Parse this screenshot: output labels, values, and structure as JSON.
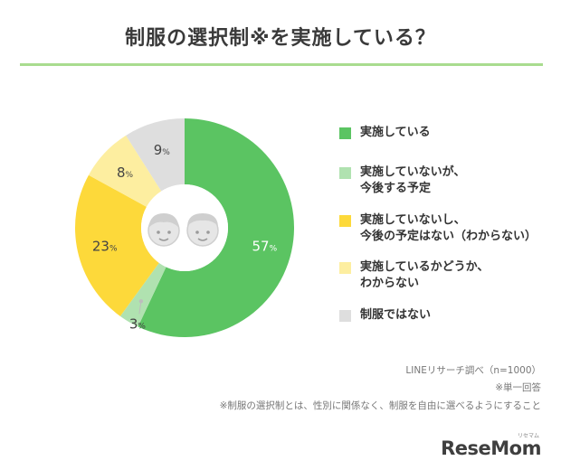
{
  "title": "制服の選択制※を実施している？",
  "chart_data": {
    "type": "pie",
    "categories": [
      "実施している",
      "実施していないが、今後する予定",
      "実施していないし、今後の予定はない（わからない）",
      "実施しているかどうか、わからない",
      "制服ではない"
    ],
    "values": [
      57,
      3,
      23,
      8,
      9
    ],
    "unit": "%",
    "colors": [
      "#5bc462",
      "#b0e2b0",
      "#fdd93a",
      "#fdeea0",
      "#dedede"
    ],
    "legend": {
      "placement": "right",
      "items": [
        {
          "lines": [
            "実施している"
          ],
          "color": "#5bc462"
        },
        {
          "lines": [
            "実施していないが、",
            "今後する予定"
          ],
          "color": "#b0e2b0"
        },
        {
          "lines": [
            "実施していないし、",
            "今後の予定はない（わからない）"
          ],
          "color": "#fdd93a"
        },
        {
          "lines": [
            "実施しているかどうか、",
            "わからない"
          ],
          "color": "#fdeea0"
        },
        {
          "lines": [
            "制服ではない"
          ],
          "color": "#dedede"
        }
      ]
    }
  },
  "notes": {
    "source": "LINEリサーチ調べ（n=1000）",
    "single_answer": "※単一回答",
    "footnote": "※制服の選択制とは、性別に関係なく、制服を自由に選べるようにすること"
  },
  "brand": {
    "name": "ReseMom",
    "sub": "リセマム"
  }
}
